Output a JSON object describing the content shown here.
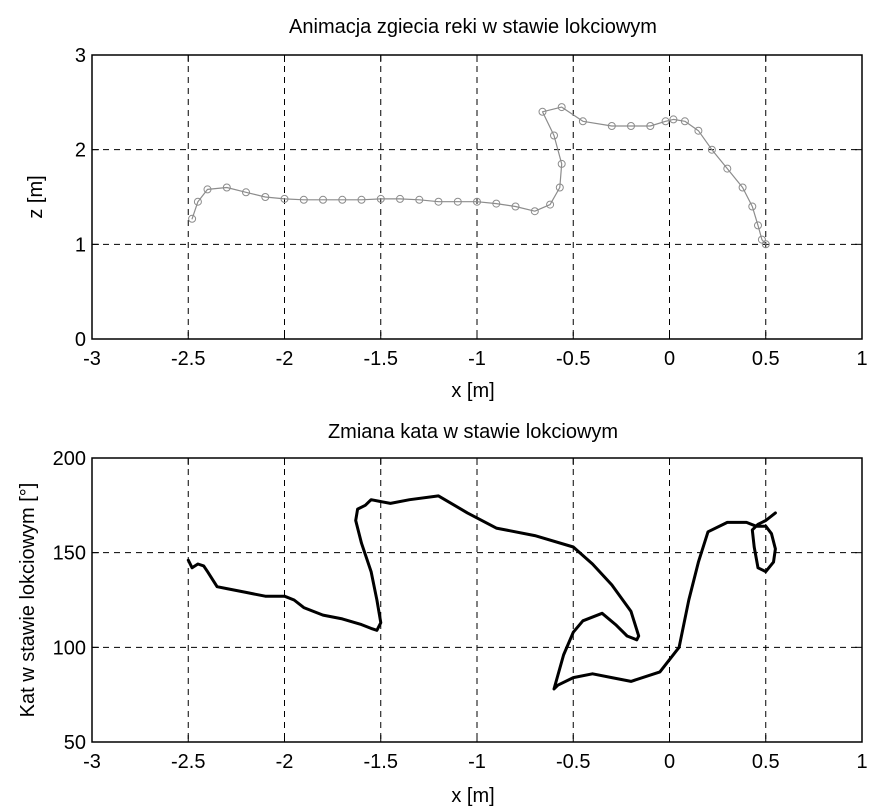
{
  "chart_data": [
    {
      "type": "line",
      "title": "Animacja zgiecia reki w stawie lokciowym",
      "xlabel": "x  [m]",
      "ylabel": "z  [m]",
      "xlim": [
        -3,
        1
      ],
      "ylim": [
        0,
        3
      ],
      "xticks": [
        "-3",
        "-2.5",
        "-2",
        "-1.5",
        "-1",
        "-0.5",
        "0",
        "0.5",
        "1"
      ],
      "yticks": [
        "0",
        "1",
        "2",
        "3"
      ],
      "grid": true,
      "color": "#8c8c8c",
      "series": [
        {
          "x": [
            -2.48,
            -2.45,
            -2.4,
            -2.3,
            -2.2,
            -2.1,
            -2.0,
            -1.9,
            -1.8,
            -1.7,
            -1.6,
            -1.5,
            -1.4,
            -1.3,
            -1.2,
            -1.1,
            -1.0,
            -0.9,
            -0.8,
            -0.7,
            -0.62,
            -0.57,
            -0.56,
            -0.6,
            -0.66,
            -0.56,
            -0.45,
            -0.3,
            -0.2,
            -0.1,
            -0.02,
            0.02,
            0.08,
            0.15,
            0.22,
            0.3,
            0.38,
            0.43,
            0.46,
            0.48,
            0.5
          ],
          "y": [
            1.27,
            1.45,
            1.58,
            1.6,
            1.55,
            1.5,
            1.48,
            1.47,
            1.47,
            1.47,
            1.47,
            1.48,
            1.48,
            1.47,
            1.45,
            1.45,
            1.45,
            1.43,
            1.4,
            1.35,
            1.42,
            1.6,
            1.85,
            2.15,
            2.4,
            2.45,
            2.3,
            2.25,
            2.25,
            2.25,
            2.3,
            2.32,
            2.3,
            2.2,
            2.0,
            1.8,
            1.6,
            1.4,
            1.2,
            1.05,
            1.0
          ]
        }
      ]
    },
    {
      "type": "line",
      "title": "Zmiana kata w stawie lokciowym",
      "xlabel": "x  [m]",
      "ylabel": "Kat w stawie lokciowym  [°]",
      "xlim": [
        -3,
        1
      ],
      "ylim": [
        50,
        200
      ],
      "xticks": [
        "-3",
        "-2.5",
        "-2",
        "-1.5",
        "-1",
        "-0.5",
        "0",
        "0.5",
        "1"
      ],
      "yticks": [
        "50",
        "100",
        "150",
        "200"
      ],
      "grid": true,
      "color": "#000000",
      "series": [
        {
          "x": [
            -2.5,
            -2.48,
            -2.45,
            -2.42,
            -2.4,
            -2.35,
            -2.3,
            -2.2,
            -2.1,
            -2.0,
            -1.95,
            -1.9,
            -1.8,
            -1.7,
            -1.6,
            -1.55,
            -1.52,
            -1.5,
            -1.52,
            -1.55,
            -1.6,
            -1.63,
            -1.62,
            -1.58,
            -1.55,
            -1.45,
            -1.35,
            -1.2,
            -1.05,
            -0.9,
            -0.7,
            -0.5,
            -0.4,
            -0.3,
            -0.2,
            -0.16,
            -0.17,
            -0.22,
            -0.28,
            -0.35,
            -0.45,
            -0.5,
            -0.55,
            -0.6,
            -0.58,
            -0.5,
            -0.4,
            -0.3,
            -0.2,
            -0.05,
            0.05,
            0.1,
            0.15,
            0.2,
            0.3,
            0.4,
            0.45,
            0.5,
            0.53,
            0.55,
            0.54,
            0.5,
            0.46,
            0.44,
            0.43,
            0.46,
            0.5,
            0.55
          ],
          "y": [
            146,
            142,
            144,
            143,
            140,
            132,
            131,
            129,
            127,
            127,
            125,
            121,
            117,
            115,
            112,
            110,
            109,
            113,
            125,
            140,
            155,
            167,
            173,
            175,
            178,
            176,
            178,
            180,
            171,
            163,
            159,
            153,
            144,
            133,
            119,
            106,
            104,
            106,
            112,
            118,
            114,
            108,
            96,
            78,
            80,
            84,
            86,
            84,
            82,
            87,
            100,
            125,
            145,
            161,
            166,
            166,
            164,
            164,
            160,
            152,
            145,
            140,
            142,
            153,
            162,
            165,
            167,
            171
          ]
        }
      ]
    }
  ]
}
